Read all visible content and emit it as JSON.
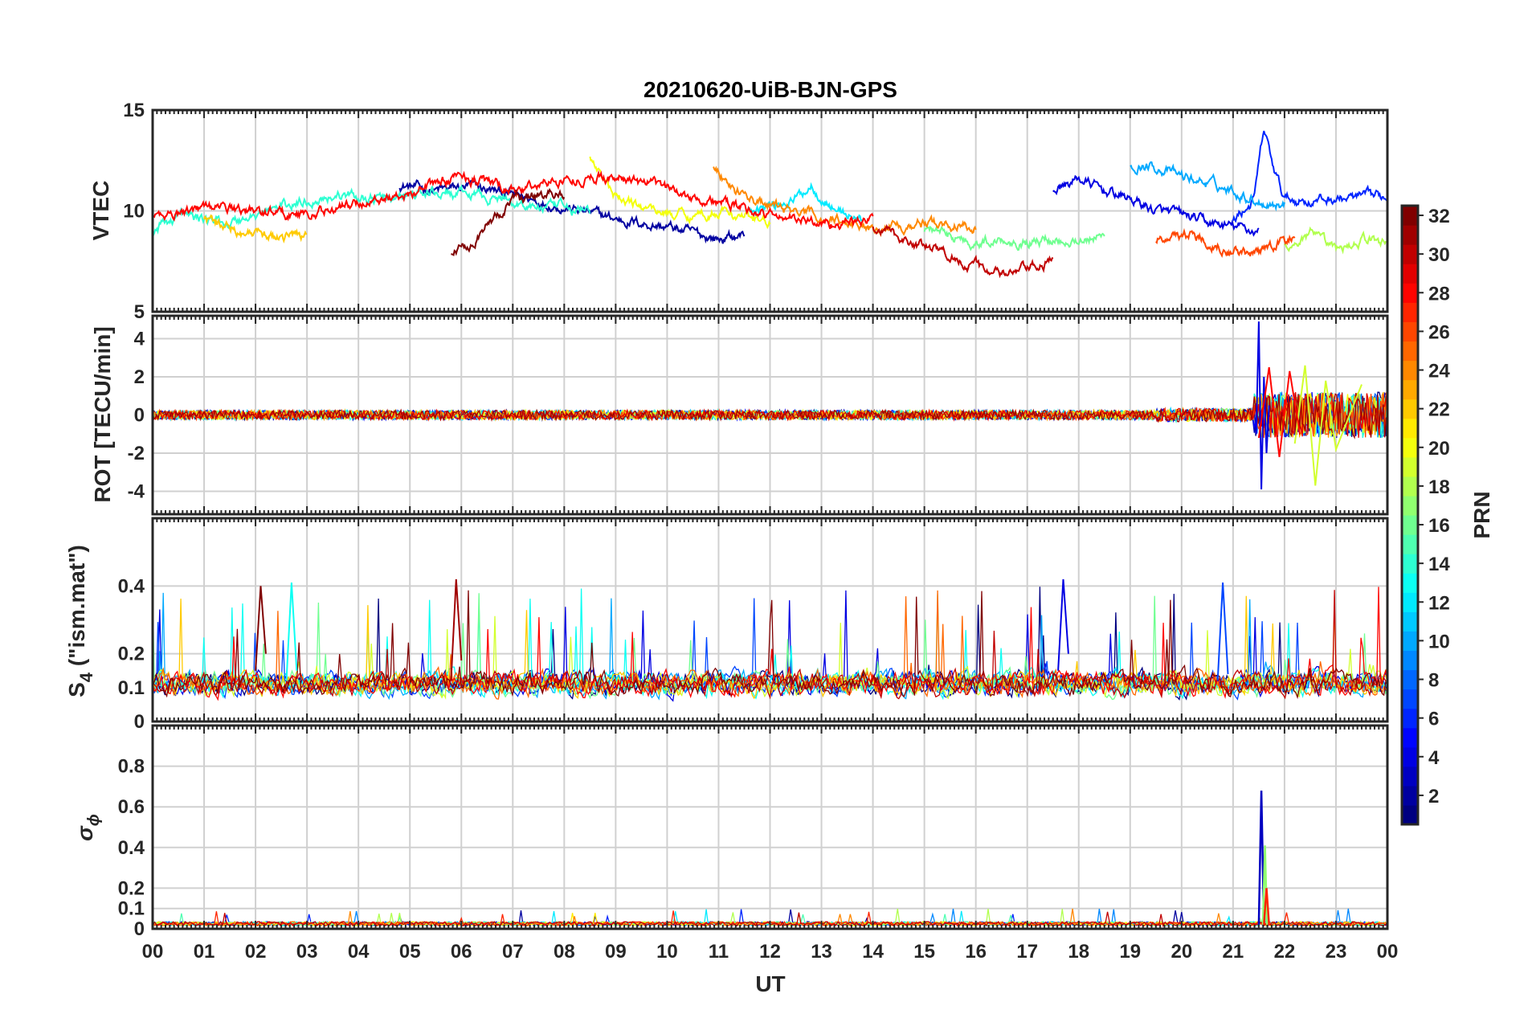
{
  "title": "20210620-UiB-BJN-GPS",
  "xlabel": "UT",
  "x_ticks": [
    "00",
    "01",
    "02",
    "03",
    "04",
    "05",
    "06",
    "07",
    "08",
    "09",
    "10",
    "11",
    "12",
    "13",
    "14",
    "15",
    "16",
    "17",
    "18",
    "19",
    "20",
    "21",
    "22",
    "23",
    "00"
  ],
  "colorbar": {
    "label": "PRN",
    "range": [
      1,
      32
    ],
    "ticks": [
      "2",
      "4",
      "6",
      "8",
      "10",
      "12",
      "14",
      "16",
      "18",
      "20",
      "22",
      "24",
      "26",
      "28",
      "30",
      "32"
    ],
    "tick_values": [
      2,
      4,
      6,
      8,
      10,
      12,
      14,
      16,
      18,
      20,
      22,
      24,
      26,
      28,
      30,
      32
    ],
    "colormap": "jet"
  },
  "panels": {
    "vtec": {
      "ylabel": "VTEC",
      "ticks": [
        "5",
        "10",
        "15"
      ]
    },
    "rot": {
      "ylabel": "ROT [TECU/min]",
      "ticks": [
        "-4",
        "-2",
        "0",
        "2",
        "4"
      ]
    },
    "s4": {
      "ylabel_main": "S",
      "ylabel_sub": "4",
      "ylabel_rest": " (\"ism.mat\")",
      "ticks": [
        "0",
        "0.1",
        "0.2",
        "0.4"
      ]
    },
    "sigma": {
      "ylabel_main": "σ",
      "ylabel_sub": "ϕ",
      "ticks": [
        "0",
        "0.1",
        "0.2",
        "0.4",
        "0.6",
        "0.8"
      ]
    }
  },
  "chart_data": [
    {
      "type": "line",
      "panel": "vtec",
      "ylabel": "VTEC",
      "xlim": [
        0,
        24
      ],
      "ylim": [
        5,
        15
      ],
      "y_ticks": [
        5,
        10,
        15
      ],
      "grid": true,
      "color_by": "PRN (jet colormap, 1-32)",
      "series": [
        {
          "prn": 2,
          "x": [
            4.8,
            5.5,
            6.2,
            7.0,
            8.0,
            9.0,
            10.0,
            11.0,
            11.5
          ],
          "y": [
            11.3,
            11.0,
            11.2,
            10.8,
            10.2,
            9.6,
            9.2,
            8.6,
            8.8
          ]
        },
        {
          "prn": 4,
          "x": [
            17.5,
            18.0,
            18.5,
            19.0,
            19.5,
            20.0,
            20.5,
            21.0,
            21.5
          ],
          "y": [
            11.0,
            11.6,
            11.0,
            10.6,
            10.0,
            9.8,
            9.4,
            9.2,
            9.0
          ]
        },
        {
          "prn": 6,
          "x": [
            21.0,
            21.4,
            21.6,
            21.8,
            22.0,
            22.5,
            23.0,
            24.0
          ],
          "y": [
            9.6,
            10.5,
            14.0,
            12.0,
            10.6,
            10.5,
            10.6,
            10.7
          ]
        },
        {
          "prn": 10,
          "x": [
            19.0,
            19.5,
            20.0,
            20.5,
            21.0,
            21.5,
            22.0
          ],
          "y": [
            12.3,
            12.2,
            11.7,
            11.4,
            11.0,
            10.5,
            10.3
          ]
        },
        {
          "prn": 12,
          "x": [
            11.6,
            12.0,
            12.5,
            12.8,
            13.2,
            13.8
          ],
          "y": [
            10.2,
            10.3,
            10.6,
            11.3,
            10.2,
            9.5
          ]
        },
        {
          "prn": 14,
          "x": [
            0.0,
            0.5,
            1.5,
            2.5,
            3.5,
            4.5,
            5.5,
            6.5,
            7.5,
            8.5
          ],
          "y": [
            9.0,
            9.8,
            9.4,
            10.2,
            10.8,
            10.6,
            10.9,
            10.7,
            10.2,
            10.0
          ]
        },
        {
          "prn": 16,
          "x": [
            15.0,
            15.5,
            16.0,
            16.5,
            17.0,
            17.5,
            18.0,
            18.5
          ],
          "y": [
            9.1,
            8.8,
            8.4,
            8.6,
            8.5,
            8.6,
            8.6,
            8.7
          ]
        },
        {
          "prn": 18,
          "x": [
            22.0,
            22.5,
            23.0,
            23.5,
            24.0
          ],
          "y": [
            8.2,
            8.8,
            8.0,
            8.6,
            8.4
          ]
        },
        {
          "prn": 20,
          "x": [
            8.5,
            9.0,
            9.5,
            10.0,
            10.5,
            11.0,
            11.5,
            12.0
          ],
          "y": [
            12.8,
            10.6,
            10.2,
            9.9,
            9.8,
            10.0,
            9.7,
            9.4
          ]
        },
        {
          "prn": 22,
          "x": [
            1.0,
            1.5,
            2.0,
            2.5,
            3.0
          ],
          "y": [
            9.5,
            9.2,
            8.8,
            8.7,
            8.9
          ]
        },
        {
          "prn": 24,
          "x": [
            10.9,
            11.3,
            12.0,
            13.0,
            14.0,
            15.0,
            16.0
          ],
          "y": [
            12.3,
            11.0,
            10.2,
            9.7,
            9.2,
            9.4,
            9.2
          ]
        },
        {
          "prn": 26,
          "x": [
            19.5,
            20.0,
            20.5,
            21.0,
            21.5,
            21.8,
            22.2
          ],
          "y": [
            8.5,
            8.9,
            8.6,
            8.0,
            7.8,
            8.4,
            8.7
          ]
        },
        {
          "prn": 28,
          "x": [
            0.0,
            1.0,
            2.0,
            3.0,
            4.0,
            5.0,
            6.0,
            7.0,
            8.0,
            9.0,
            10.0,
            11.0,
            12.0,
            13.0,
            14.0
          ],
          "y": [
            9.7,
            10.2,
            10.0,
            9.8,
            10.4,
            10.9,
            11.8,
            11.0,
            11.6,
            11.7,
            11.1,
            10.4,
            9.8,
            9.4,
            9.5
          ]
        },
        {
          "prn": 30,
          "x": [
            14.0,
            14.5,
            15.0,
            15.5,
            16.0,
            16.5,
            17.0,
            17.5
          ],
          "y": [
            9.2,
            8.7,
            8.2,
            7.8,
            7.3,
            6.8,
            7.1,
            7.5
          ]
        },
        {
          "prn": 32,
          "x": [
            5.8,
            6.2,
            6.6,
            7.0,
            7.5,
            8.0
          ],
          "y": [
            7.9,
            8.5,
            9.5,
            10.5,
            10.8,
            10.9
          ]
        }
      ]
    },
    {
      "type": "line",
      "panel": "rot",
      "ylabel": "ROT [TECU/min]",
      "xlim": [
        0,
        24
      ],
      "ylim": [
        -5.2,
        5.2
      ],
      "y_ticks": [
        -4,
        -2,
        0,
        2,
        4
      ],
      "grid": true,
      "color_by": "PRN (jet colormap, 1-32)",
      "series": [
        {
          "prn": 4,
          "x": [
            21.45,
            21.5,
            21.55,
            21.6,
            21.65,
            21.7
          ],
          "y": [
            -1.0,
            4.9,
            -3.9,
            2.0,
            -2.0,
            0.5
          ]
        },
        {
          "prn": 19,
          "x": [
            22.2,
            22.4,
            22.6,
            22.8,
            23.0,
            23.5
          ],
          "y": [
            -1.5,
            2.6,
            -3.7,
            1.8,
            -1.8,
            1.6
          ]
        },
        {
          "prn": 28,
          "x": [
            21.5,
            21.7,
            21.9,
            22.1,
            22.3
          ],
          "y": [
            -1.2,
            2.5,
            -2.2,
            2.3,
            -1.0
          ]
        }
      ],
      "note": "all satellites fluctuate within about ±0.5 TECU/min from 00 to 21 UT"
    },
    {
      "type": "line",
      "panel": "s4",
      "ylabel": "S4 (\"ism.mat\")",
      "xlim": [
        0,
        24
      ],
      "ylim": [
        0,
        0.6
      ],
      "y_ticks": [
        0,
        0.1,
        0.2,
        0.4
      ],
      "grid": true,
      "color_by": "PRN (jet colormap, 1-32)",
      "series": [
        {
          "prn": 32,
          "x": [
            2.0,
            2.1,
            2.2
          ],
          "y": [
            0.15,
            0.4,
            0.2
          ]
        },
        {
          "prn": 31,
          "x": [
            5.8,
            5.9,
            6.0
          ],
          "y": [
            0.12,
            0.42,
            0.18
          ]
        },
        {
          "prn": 13,
          "x": [
            2.6,
            2.7,
            2.8
          ],
          "y": [
            0.12,
            0.41,
            0.15
          ]
        },
        {
          "prn": 4,
          "x": [
            17.6,
            17.7,
            17.8
          ],
          "y": [
            0.15,
            0.42,
            0.2
          ]
        },
        {
          "prn": 7,
          "x": [
            20.7,
            20.8,
            20.9
          ],
          "y": [
            0.12,
            0.41,
            0.14
          ]
        }
      ],
      "note": "baseline values mostly 0.05–0.15 with frequent spikes up to about 0.42"
    },
    {
      "type": "line",
      "panel": "sigma",
      "ylabel": "σφ",
      "xlim": [
        0,
        24
      ],
      "ylim": [
        0,
        1.0
      ],
      "y_ticks": [
        0,
        0.1,
        0.2,
        0.4,
        0.6,
        0.8
      ],
      "grid": true,
      "color_by": "PRN (jet colormap, 1-32)",
      "series": [
        {
          "prn": 3,
          "x": [
            21.5,
            21.55,
            21.6
          ],
          "y": [
            0.02,
            0.68,
            0.02
          ]
        },
        {
          "prn": 17,
          "x": [
            21.58,
            21.62,
            21.66
          ],
          "y": [
            0.02,
            0.41,
            0.02
          ]
        },
        {
          "prn": 27,
          "x": [
            21.6,
            21.65,
            21.7
          ],
          "y": [
            0.02,
            0.2,
            0.02
          ]
        }
      ],
      "note": "near 0.02 for all satellites except spike near 21.5 UT"
    }
  ]
}
